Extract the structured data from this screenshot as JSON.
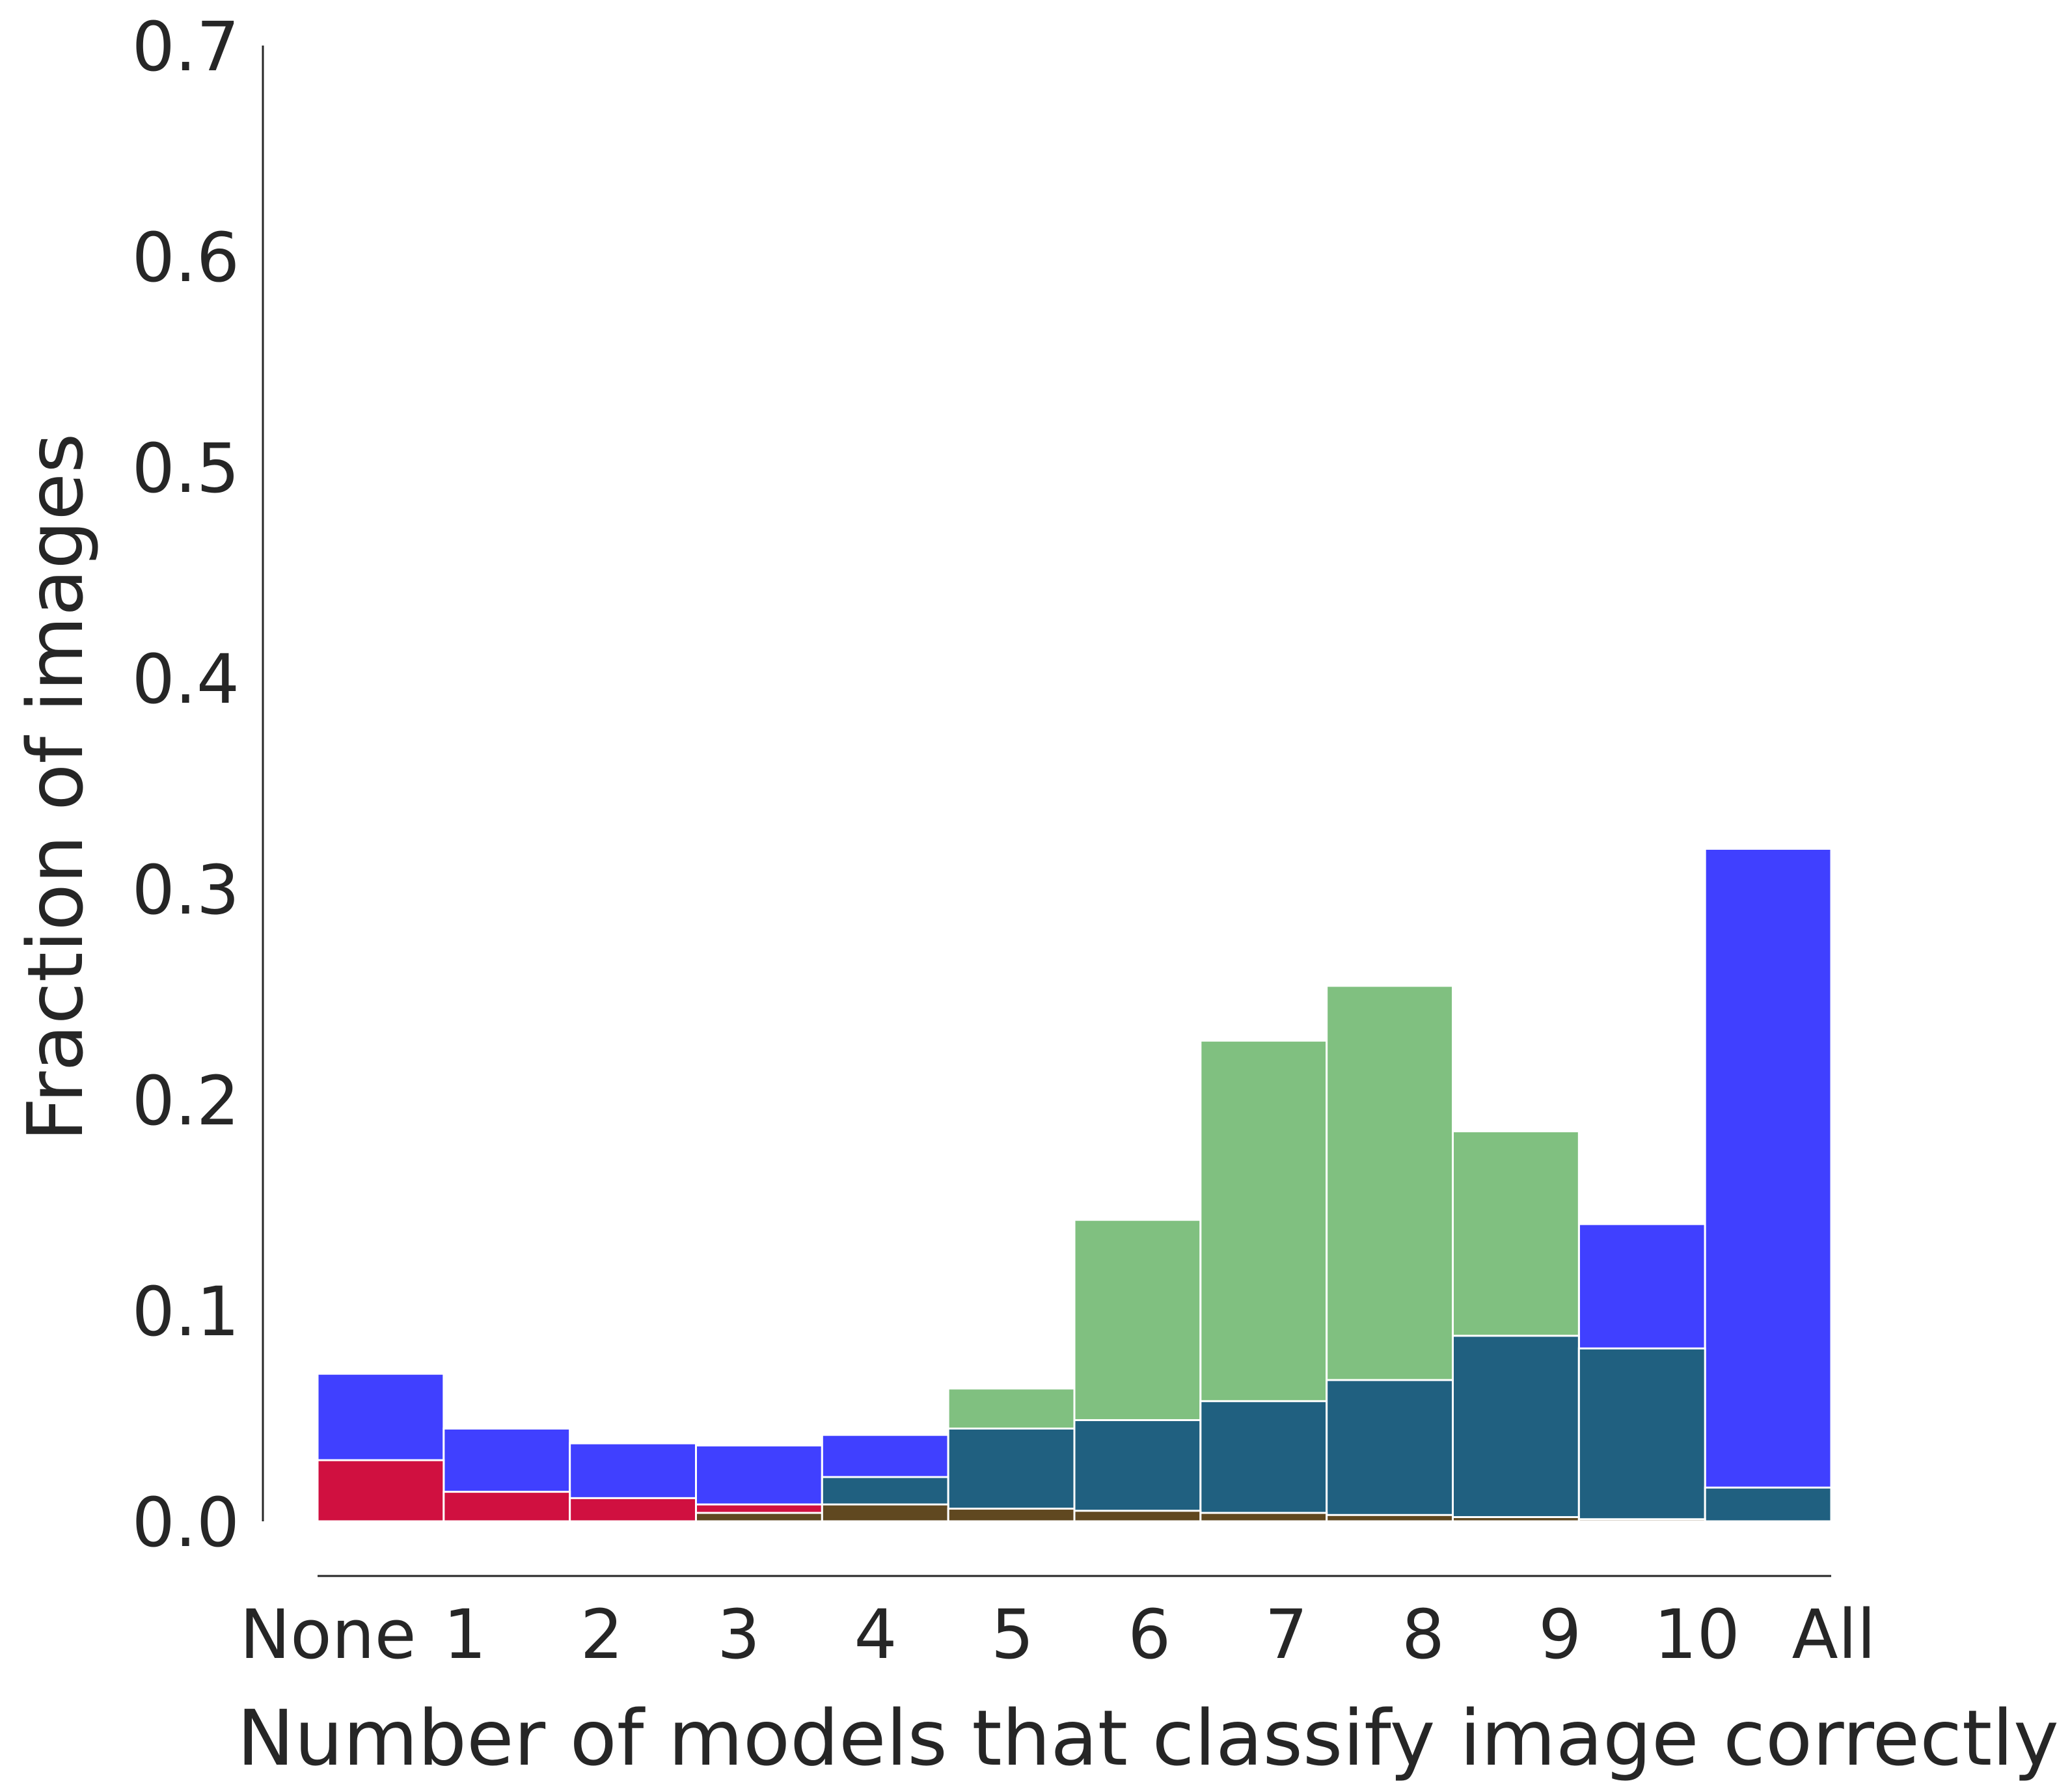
{
  "chart_data": {
    "type": "bar",
    "overlay": true,
    "categories": [
      "None",
      "1",
      "2",
      "3",
      "4",
      "5",
      "6",
      "7",
      "8",
      "9",
      "10",
      "All"
    ],
    "xlabel": "Number of models that classify image correctly",
    "ylabel": "Fraction of images",
    "ylim": [
      0,
      0.7
    ],
    "yticks": [
      "0.0",
      "0.1",
      "0.2",
      "0.3",
      "0.4",
      "0.5",
      "0.6",
      "0.7"
    ],
    "grid": false,
    "legend": "none",
    "series": [
      {
        "color": "#4040ff",
        "values": [
          0.07,
          0.044,
          0.037,
          0.036,
          0.041,
          0.015,
          0.012,
          0.006,
          0.004,
          0.003,
          0.141,
          0.319
        ]
      },
      {
        "color": "#80c080",
        "values": [
          0.0,
          0.0,
          0.0,
          0.001,
          0.009,
          0.063,
          0.143,
          0.228,
          0.254,
          0.185,
          0.002,
          0.001
        ]
      },
      {
        "color": "#206080",
        "values": [
          0.0,
          0.0,
          0.0,
          0.0,
          0.021,
          0.044,
          0.048,
          0.057,
          0.067,
          0.088,
          0.082,
          0.016
        ]
      },
      {
        "color": "#d01040",
        "values": [
          0.029,
          0.014,
          0.011,
          0.008,
          0.0,
          0.0,
          0.0,
          0.0,
          0.0,
          0.0,
          0.0,
          0.0
        ]
      },
      {
        "color": "#604820",
        "values": [
          0.0,
          0.0,
          0.0,
          0.004,
          0.008,
          0.006,
          0.005,
          0.004,
          0.003,
          0.002,
          0.001,
          0.0
        ]
      }
    ]
  }
}
